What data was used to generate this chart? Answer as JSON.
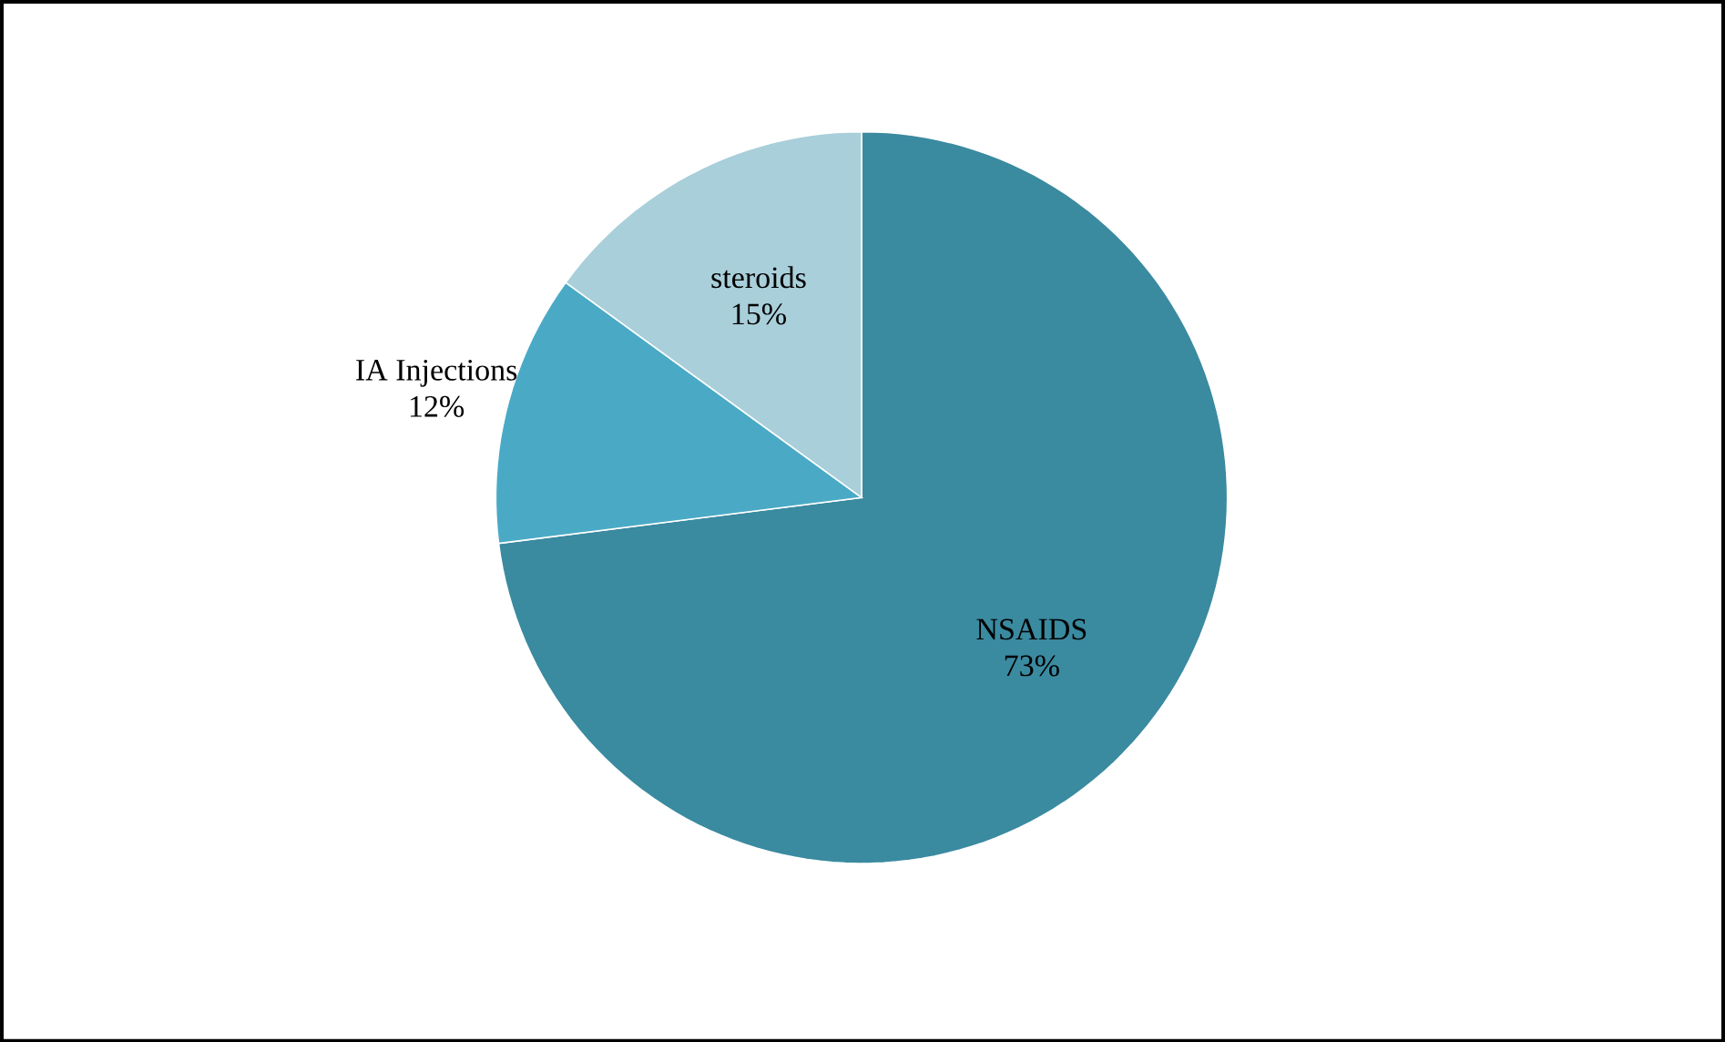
{
  "chart_data": {
    "type": "pie",
    "categories": [
      "NSAIDS",
      "IA Injections",
      "steroids"
    ],
    "values": [
      73,
      12,
      15
    ],
    "value_labels": [
      "73%",
      "12%",
      "15%"
    ],
    "colors": [
      "#3a8aa0",
      "#4aaac6",
      "#a9cfda"
    ]
  }
}
